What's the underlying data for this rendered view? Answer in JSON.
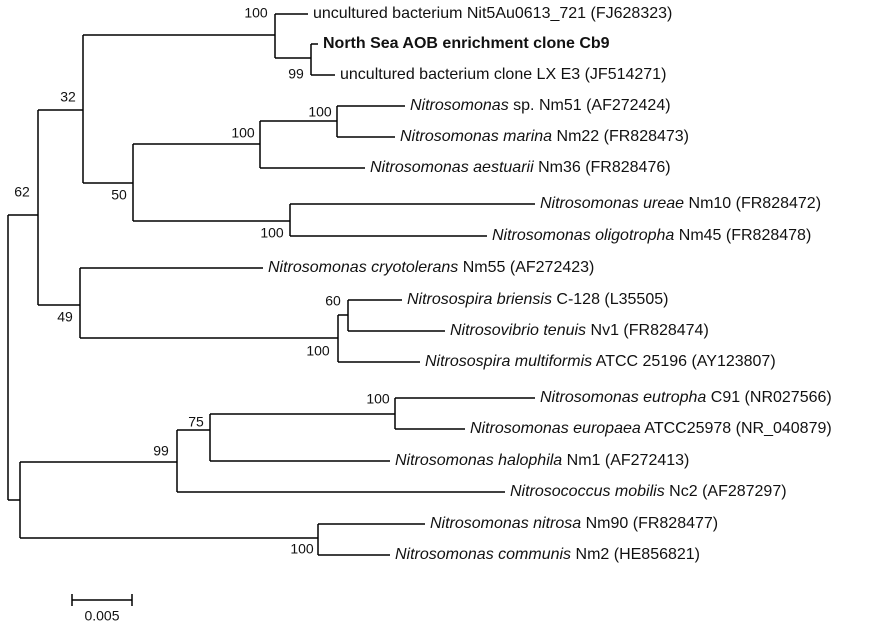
{
  "tree": {
    "leaves": [
      {
        "text": "uncultured bacterium Nit5Au0613_721 (FJ628323)"
      },
      {
        "bold": "North Sea AOB enrichment clone Cb9"
      },
      {
        "text": "uncultured bacterium clone LX E3 (JF514271)"
      },
      {
        "italic": "Nitrosomonas",
        "text": " sp. Nm51 (AF272424)"
      },
      {
        "italic": "Nitrosomonas marina",
        "text": " Nm22 (FR828473)"
      },
      {
        "italic": "Nitrosomonas aestuarii",
        "text": " Nm36 (FR828476)"
      },
      {
        "italic": "Nitrosomonas ureae",
        "text": " Nm10 (FR828472)"
      },
      {
        "italic": "Nitrosomonas oligotropha",
        "text": " Nm45 (FR828478)"
      },
      {
        "italic": "Nitrosomonas cryotolerans",
        "text": " Nm55 (AF272423)"
      },
      {
        "italic": "Nitrosospira briensis",
        "text": " C-128 (L35505)"
      },
      {
        "italic": "Nitrosovibrio tenuis",
        "text": " Nv1 (FR828474)"
      },
      {
        "italic": "Nitrosospira multiformis",
        "text": " ATCC 25196 (AY123807)"
      },
      {
        "italic": "Nitrosomonas eutropha",
        "text": " C91 (NR027566)"
      },
      {
        "italic": "Nitrosomonas europaea",
        "text": " ATCC25978 (NR_040879)"
      },
      {
        "italic": "Nitrosomonas halophila",
        "text": " Nm1 (AF272413)"
      },
      {
        "italic": "Nitrosococcus mobilis",
        "text": " Nc2 (AF287297)"
      },
      {
        "italic": "Nitrosomonas nitrosa",
        "text": " Nm90 (FR828477)"
      },
      {
        "italic": "Nitrosomonas communis",
        "text": " Nm2 (HE856821)"
      }
    ],
    "bootstrap": [
      100,
      99,
      32,
      100,
      100,
      50,
      100,
      62,
      60,
      49,
      100,
      100,
      75,
      99,
      100
    ],
    "scale": 0.005
  }
}
